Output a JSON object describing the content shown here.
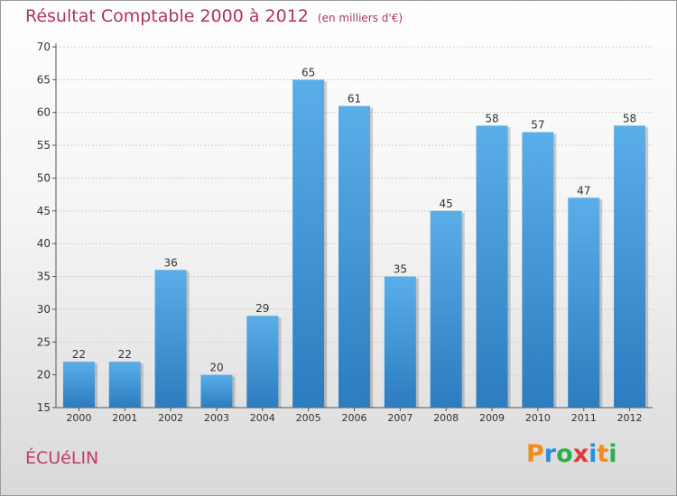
{
  "page": {
    "title": "Résultat Comptable 2000 à 2012",
    "unit": "(en milliers d'€)",
    "place": "ÉCUéLIN",
    "brand": {
      "text": "Proxiti",
      "letters": [
        "P",
        "r",
        "o",
        "x",
        "i",
        "t",
        "i"
      ],
      "colors": [
        "#f28c1c",
        "#2d8fd6",
        "#2eae4a",
        "#e23a3a",
        "#2d8fd6",
        "#f28c1c",
        "#2eae4a"
      ]
    }
  },
  "colors": {
    "bar_top": "#5aaee8",
    "bar_bottom": "#2c7cbf",
    "grid": "#cfcfcf",
    "axis": "#555555",
    "text": "#333333"
  },
  "chart_data": {
    "type": "bar",
    "title": "Résultat Comptable 2000 à 2012",
    "xlabel": "",
    "ylabel": "",
    "ylim": [
      15,
      70
    ],
    "ytick_step": 5,
    "yticks": [
      "15",
      "20",
      "25",
      "30",
      "35",
      "40",
      "45",
      "50",
      "55",
      "60",
      "65",
      "70"
    ],
    "grid": true,
    "categories": [
      "2000",
      "2001",
      "2002",
      "2003",
      "2004",
      "2005",
      "2006",
      "2007",
      "2008",
      "2009",
      "2010",
      "2011",
      "2012"
    ],
    "values": [
      22,
      22,
      36,
      20,
      29,
      65,
      61,
      35,
      45,
      58,
      57,
      47,
      58
    ],
    "labels": [
      "22",
      "22",
      "36",
      "20",
      "29",
      "65",
      "61",
      "35",
      "45",
      "58",
      "57",
      "47",
      "58"
    ]
  }
}
